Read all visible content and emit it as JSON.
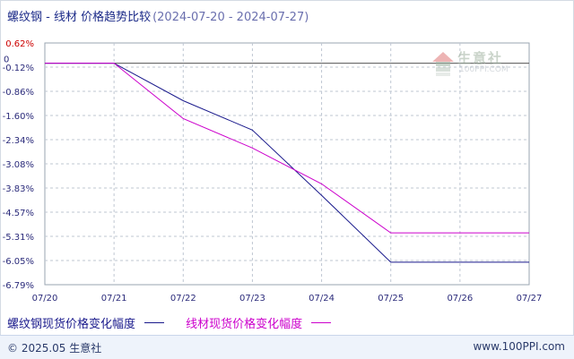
{
  "title": {
    "main": "螺纹钢 - 线材 价格趋势比较",
    "range": "(2024-07-20 - 2024-07-27)"
  },
  "watermark": {
    "name": "生意社",
    "url": "100PPI.COM",
    "icon": "house-logo-icon"
  },
  "footer": {
    "copyright": "© 2025.05 生意社",
    "site": "www.100PPI.com"
  },
  "colors": {
    "series1": "#1a1a8c",
    "series2": "#cc00cc",
    "title": "#1b2a88",
    "ytick_top": "#cc0000",
    "ytick": "#2a2a7a",
    "grid": "#bfc7d2"
  },
  "chart_data": {
    "type": "line",
    "title": "螺纹钢 - 线材 价格趋势比较",
    "x": [
      "07/20",
      "07/21",
      "07/22",
      "07/23",
      "07/24",
      "07/25",
      "07/26",
      "07/27"
    ],
    "ytick_labels": [
      "0.62%",
      "-0.12%",
      "-0.86%",
      "-1.60%",
      "-2.34%",
      "-3.08%",
      "-3.83%",
      "-4.57%",
      "-5.31%",
      "-6.05%",
      "-6.79%"
    ],
    "ylim": [
      -6.79,
      0.62
    ],
    "zero_marker": "0",
    "grid": true,
    "legend_position": "bottom",
    "series": [
      {
        "name": "螺纹钢现货价格变化幅度",
        "values": [
          0,
          0,
          -1.15,
          -2.05,
          -4.05,
          -6.1,
          -6.1,
          -6.1
        ]
      },
      {
        "name": "线材现货价格变化幅度",
        "values": [
          0,
          0,
          -1.7,
          -2.6,
          -3.7,
          -5.2,
          -5.2,
          -5.2
        ]
      }
    ]
  }
}
